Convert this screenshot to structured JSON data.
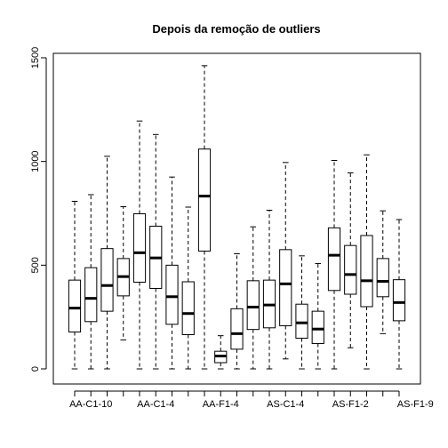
{
  "chart_data": {
    "type": "boxplot",
    "title": "Depois da remoção de outliers",
    "xlabel": "",
    "ylabel": "",
    "ylim": [
      -50,
      1510
    ],
    "yticks": [
      0,
      500,
      1000,
      1500
    ],
    "ytick_labels": [
      "0",
      "500",
      "1000",
      "1500"
    ],
    "grid": false,
    "legend": "none",
    "xtick_labels": [
      {
        "label": "AA-C1-10",
        "at": 2
      },
      {
        "label": "AA-C1-4",
        "at": 6
      },
      {
        "label": "AA-F1-4",
        "at": 10
      },
      {
        "label": "AS-C1-4",
        "at": 14
      },
      {
        "label": "AS-F1-2",
        "at": 18
      },
      {
        "label": "AS-F1-9",
        "at": 22
      }
    ],
    "boxes": [
      {
        "min": 0,
        "q1": 178,
        "median": 293,
        "q3": 428,
        "max": 808
      },
      {
        "min": 0,
        "q1": 228,
        "median": 340,
        "q3": 488,
        "max": 840
      },
      {
        "min": 0,
        "q1": 278,
        "median": 402,
        "q3": 580,
        "max": 1025
      },
      {
        "min": 140,
        "q1": 352,
        "median": 445,
        "q3": 532,
        "max": 782
      },
      {
        "min": 0,
        "q1": 418,
        "median": 560,
        "q3": 748,
        "max": 1195
      },
      {
        "min": 0,
        "q1": 388,
        "median": 535,
        "q3": 688,
        "max": 1130
      },
      {
        "min": 0,
        "q1": 215,
        "median": 348,
        "q3": 500,
        "max": 925
      },
      {
        "min": 0,
        "q1": 165,
        "median": 267,
        "q3": 420,
        "max": 780
      },
      {
        "min": 0,
        "q1": 568,
        "median": 833,
        "q3": 1060,
        "max": 1462
      },
      {
        "min": 0,
        "q1": 30,
        "median": 62,
        "q3": 85,
        "max": 160
      },
      {
        "min": 0,
        "q1": 95,
        "median": 170,
        "q3": 290,
        "max": 555
      },
      {
        "min": 0,
        "q1": 190,
        "median": 298,
        "q3": 425,
        "max": 685
      },
      {
        "min": 0,
        "q1": 198,
        "median": 308,
        "q3": 428,
        "max": 765
      },
      {
        "min": 48,
        "q1": 208,
        "median": 410,
        "q3": 575,
        "max": 995
      },
      {
        "min": 0,
        "q1": 148,
        "median": 222,
        "q3": 312,
        "max": 545
      },
      {
        "min": 0,
        "q1": 122,
        "median": 192,
        "q3": 278,
        "max": 508
      },
      {
        "min": 0,
        "q1": 378,
        "median": 548,
        "q3": 680,
        "max": 1005
      },
      {
        "min": 102,
        "q1": 360,
        "median": 455,
        "q3": 595,
        "max": 945
      },
      {
        "min": 0,
        "q1": 300,
        "median": 425,
        "q3": 643,
        "max": 1032
      },
      {
        "min": 170,
        "q1": 348,
        "median": 422,
        "q3": 532,
        "max": 762
      },
      {
        "min": 0,
        "q1": 232,
        "median": 320,
        "q3": 430,
        "max": 720
      }
    ]
  }
}
